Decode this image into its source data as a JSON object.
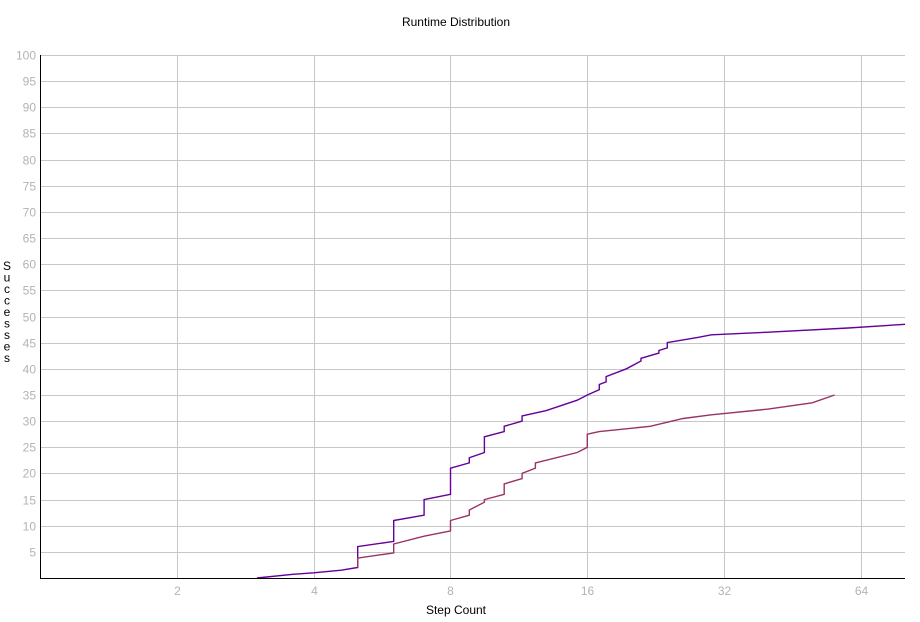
{
  "chart_data": {
    "type": "line",
    "title": "Runtime Distribution",
    "xlabel": "Step Count",
    "ylabel": "Successes",
    "x_scale": "log2",
    "xlim": [
      1,
      80
    ],
    "ylim": [
      0,
      100
    ],
    "x_ticks": [
      2,
      4,
      8,
      16,
      32,
      64
    ],
    "x_tick_labels": [
      "2",
      "4",
      "8",
      "16",
      "32",
      "64"
    ],
    "y_ticks": [
      5,
      10,
      15,
      20,
      25,
      30,
      35,
      40,
      45,
      50,
      55,
      60,
      65,
      70,
      75,
      80,
      85,
      90,
      95,
      100
    ],
    "y_tick_labels": [
      "5",
      "10",
      "15",
      "20",
      "25",
      "30",
      "35",
      "40",
      "45",
      "50",
      "55",
      "60",
      "65",
      "70",
      "75",
      "80",
      "85",
      "90",
      "95",
      "100"
    ],
    "grid": true,
    "legend": "none",
    "series": [
      {
        "color": "#660099",
        "x": [
          3,
          3.6,
          4,
          4.6,
          5,
          5,
          6,
          6,
          7,
          7,
          8,
          8,
          8.8,
          8.8,
          9.5,
          9.5,
          10.5,
          10.5,
          11.5,
          11.5,
          13,
          15.2,
          16,
          17,
          17,
          17.6,
          17.6,
          19.5,
          21,
          21,
          23,
          23,
          24,
          24,
          28,
          30,
          40,
          60,
          80
        ],
        "y": [
          0,
          0.7,
          1,
          1.5,
          2,
          6,
          7,
          11,
          12,
          15,
          16,
          21,
          22,
          23,
          24,
          27,
          28,
          29,
          30,
          31,
          32,
          34,
          35,
          36,
          37,
          37.5,
          38.5,
          40,
          41.5,
          42,
          43,
          43.5,
          44,
          45,
          46,
          46.5,
          47,
          47.8,
          48.5
        ]
      },
      {
        "color": "#993366",
        "x": [
          5,
          5,
          6,
          6,
          7,
          8,
          8,
          8.8,
          8.8,
          9.5,
          9.5,
          10.5,
          10.5,
          11.5,
          11.5,
          12.3,
          12.3,
          15.2,
          16,
          16,
          17,
          22,
          26,
          30,
          40,
          50,
          56
        ],
        "y": [
          2,
          3.8,
          4.8,
          6.5,
          8,
          9,
          11,
          12,
          13,
          14.5,
          15,
          16,
          18,
          19,
          20,
          21,
          22,
          24,
          25,
          27.5,
          28,
          29,
          30.5,
          31.2,
          32.3,
          33.5,
          35
        ]
      }
    ]
  }
}
